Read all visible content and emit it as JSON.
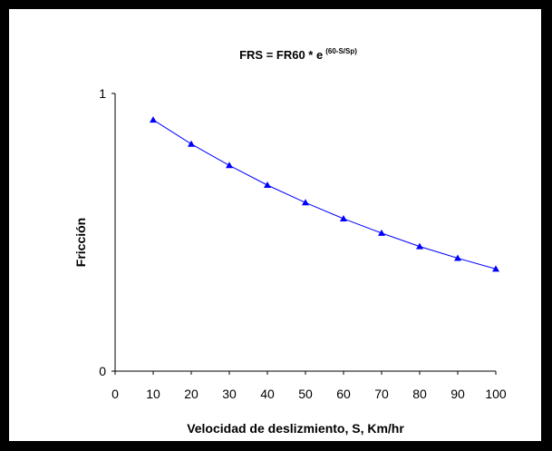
{
  "chart_data": {
    "type": "line",
    "title": "FRS = FR60 * e",
    "title_superscript": "(60-S/Sp)",
    "xlabel": "Velocidad de deslizmiento, S, Km/hr",
    "ylabel": "Fricción",
    "xlim": [
      0,
      100
    ],
    "ylim": [
      0,
      1
    ],
    "xticks": [
      "0",
      "10",
      "20",
      "30",
      "40",
      "50",
      "60",
      "70",
      "80",
      "90",
      "100"
    ],
    "yticks": [
      "0",
      "1"
    ],
    "grid": false,
    "legend": "none",
    "marker": "triangle",
    "color": "#0000ff",
    "series": [
      {
        "x": [
          10,
          20,
          30,
          40,
          50,
          60,
          70,
          80,
          90,
          100
        ],
        "values": [
          0.905,
          0.818,
          0.741,
          0.67,
          0.607,
          0.549,
          0.497,
          0.449,
          0.407,
          0.368
        ]
      }
    ]
  }
}
